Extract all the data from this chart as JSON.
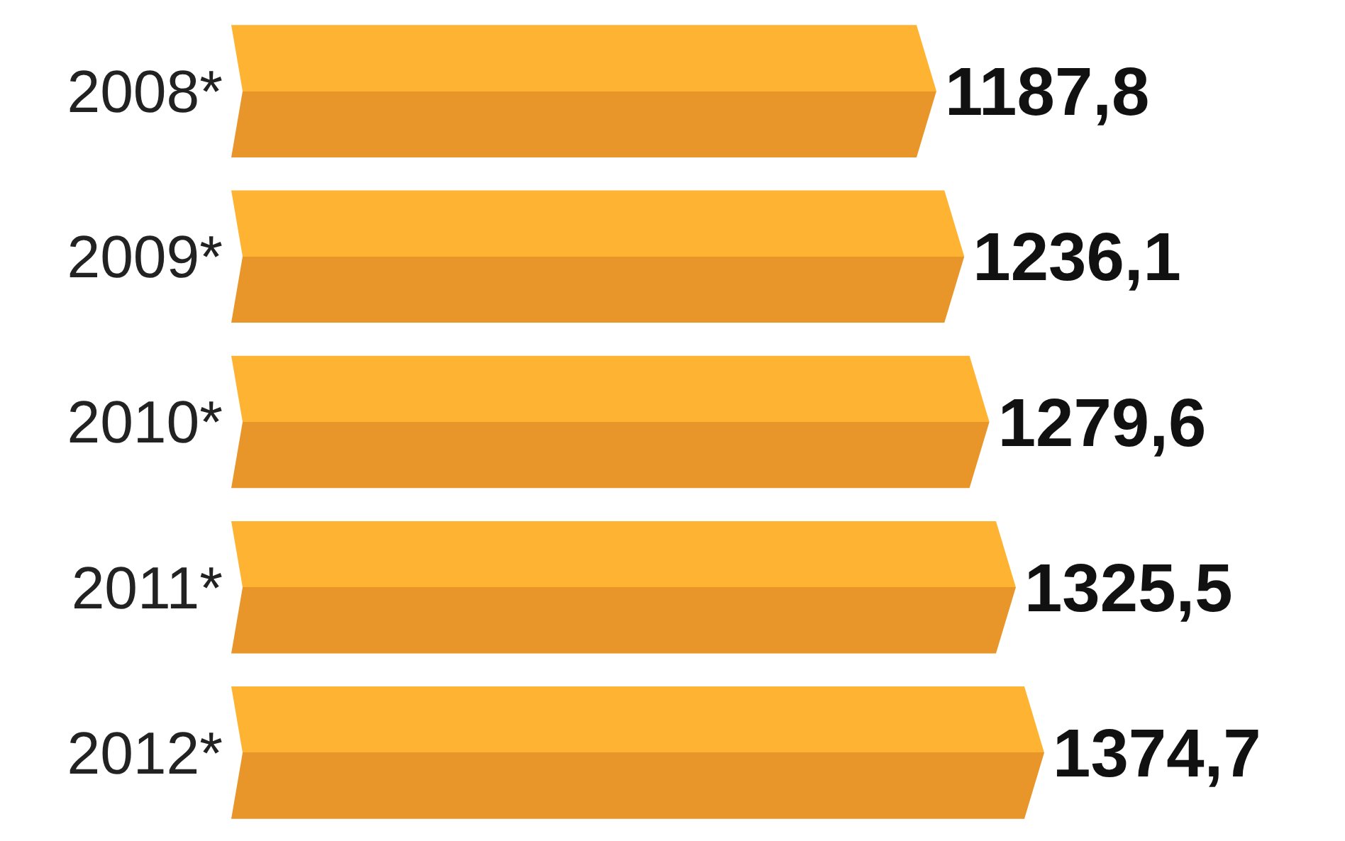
{
  "chart_data": {
    "type": "bar",
    "orientation": "horizontal",
    "categories": [
      "2008*",
      "2009*",
      "2010*",
      "2011*",
      "2012*"
    ],
    "values": [
      1187.8,
      1236.1,
      1279.6,
      1325.5,
      1374.7
    ],
    "value_labels": [
      "1187,8",
      "1236,1",
      "1279,6",
      "1325,5",
      "1374,7"
    ],
    "color": "#e8962a"
  }
}
